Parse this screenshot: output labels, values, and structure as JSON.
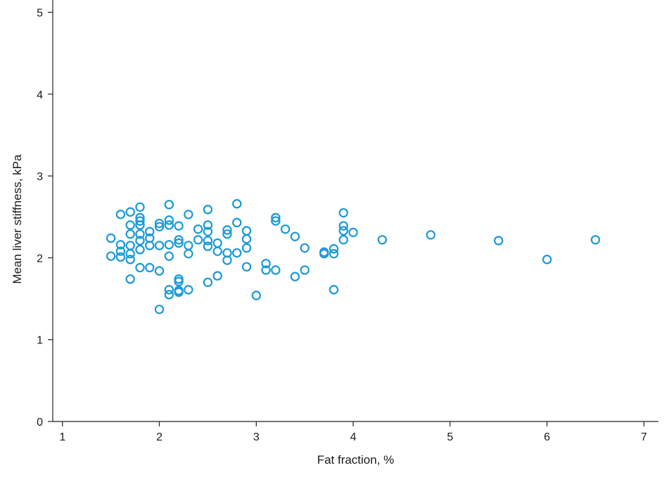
{
  "chart_data": {
    "type": "scatter",
    "title": "",
    "xlabel": "Fat fraction, %",
    "ylabel": "Mean liver stiffness, kPa",
    "xlim": [
      0.9,
      7.15
    ],
    "ylim": [
      0,
      5.15
    ],
    "xticks": [
      "1",
      "2",
      "3",
      "4",
      "5",
      "6",
      "7"
    ],
    "yticks": [
      "0",
      "1",
      "2",
      "3",
      "4",
      "5"
    ],
    "grid": false,
    "marker_color": "#1a9ad7",
    "marker": "open-circle",
    "series": [
      {
        "points": [
          [
            1.5,
            2.24
          ],
          [
            1.5,
            2.02
          ],
          [
            1.6,
            2.53
          ],
          [
            1.6,
            2.16
          ],
          [
            1.6,
            2.08
          ],
          [
            1.6,
            2.01
          ],
          [
            1.7,
            2.56
          ],
          [
            1.7,
            2.4
          ],
          [
            1.7,
            2.29
          ],
          [
            1.7,
            2.15
          ],
          [
            1.7,
            2.05
          ],
          [
            1.7,
            1.98
          ],
          [
            1.7,
            1.74
          ],
          [
            1.8,
            2.62
          ],
          [
            1.8,
            2.49
          ],
          [
            1.8,
            2.45
          ],
          [
            1.8,
            2.4
          ],
          [
            1.8,
            2.29
          ],
          [
            1.8,
            2.21
          ],
          [
            1.8,
            2.1
          ],
          [
            1.8,
            1.88
          ],
          [
            1.9,
            2.32
          ],
          [
            1.9,
            2.24
          ],
          [
            1.9,
            2.15
          ],
          [
            1.9,
            1.88
          ],
          [
            2.0,
            2.42
          ],
          [
            2.0,
            2.38
          ],
          [
            2.0,
            2.15
          ],
          [
            2.0,
            1.84
          ],
          [
            2.0,
            1.37
          ],
          [
            2.1,
            2.65
          ],
          [
            2.1,
            2.46
          ],
          [
            2.1,
            2.4
          ],
          [
            2.1,
            2.16
          ],
          [
            2.1,
            2.02
          ],
          [
            2.1,
            1.61
          ],
          [
            2.1,
            1.55
          ],
          [
            2.2,
            2.39
          ],
          [
            2.2,
            2.22
          ],
          [
            2.2,
            2.18
          ],
          [
            2.2,
            1.74
          ],
          [
            2.2,
            1.71
          ],
          [
            2.2,
            1.6
          ],
          [
            2.2,
            1.58
          ],
          [
            2.3,
            2.53
          ],
          [
            2.3,
            2.15
          ],
          [
            2.3,
            2.05
          ],
          [
            2.3,
            1.61
          ],
          [
            2.4,
            2.35
          ],
          [
            2.4,
            2.22
          ],
          [
            2.5,
            2.59
          ],
          [
            2.5,
            2.4
          ],
          [
            2.5,
            2.32
          ],
          [
            2.5,
            2.21
          ],
          [
            2.5,
            2.14
          ],
          [
            2.5,
            1.7
          ],
          [
            2.6,
            2.18
          ],
          [
            2.6,
            2.08
          ],
          [
            2.6,
            1.78
          ],
          [
            2.7,
            2.34
          ],
          [
            2.7,
            2.29
          ],
          [
            2.7,
            2.06
          ],
          [
            2.7,
            1.97
          ],
          [
            2.8,
            2.66
          ],
          [
            2.8,
            2.43
          ],
          [
            2.8,
            2.06
          ],
          [
            2.9,
            2.33
          ],
          [
            2.9,
            2.23
          ],
          [
            2.9,
            2.12
          ],
          [
            2.9,
            1.89
          ],
          [
            3.0,
            1.54
          ],
          [
            3.1,
            1.93
          ],
          [
            3.1,
            1.85
          ],
          [
            3.2,
            2.49
          ],
          [
            3.2,
            2.45
          ],
          [
            3.2,
            1.85
          ],
          [
            3.3,
            2.35
          ],
          [
            3.4,
            2.26
          ],
          [
            3.4,
            1.77
          ],
          [
            3.5,
            2.12
          ],
          [
            3.5,
            1.85
          ],
          [
            3.7,
            2.07
          ],
          [
            3.7,
            2.05
          ],
          [
            3.8,
            2.11
          ],
          [
            3.8,
            2.05
          ],
          [
            3.8,
            1.61
          ],
          [
            3.9,
            2.55
          ],
          [
            3.9,
            2.39
          ],
          [
            3.9,
            2.33
          ],
          [
            3.9,
            2.22
          ],
          [
            4.0,
            2.31
          ],
          [
            4.3,
            2.22
          ],
          [
            4.8,
            2.28
          ],
          [
            5.5,
            2.21
          ],
          [
            6.0,
            1.98
          ],
          [
            6.5,
            2.22
          ]
        ]
      }
    ]
  }
}
